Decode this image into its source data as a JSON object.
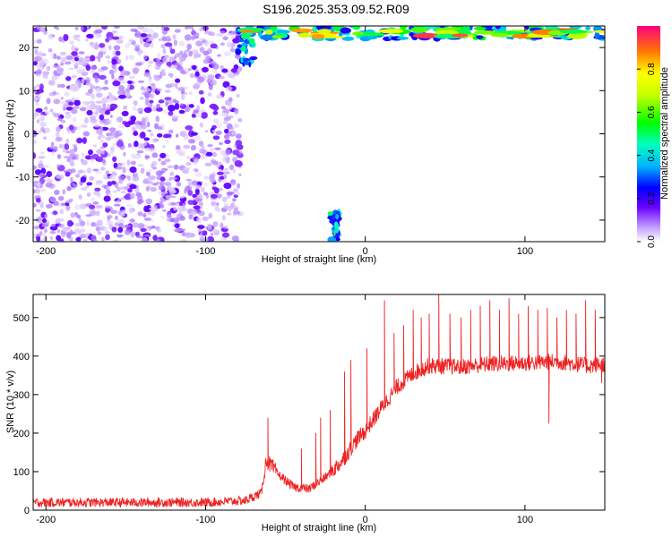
{
  "title": "S196.2025.353.09.52.R09",
  "chart_data": [
    {
      "type": "heatmap",
      "xlabel": "Height of straight line (km)",
      "ylabel": "Frequency (Hz)",
      "xlim": [
        -208,
        150
      ],
      "ylim": [
        -25,
        25
      ],
      "x_ticks": [
        -200,
        -100,
        0,
        100
      ],
      "x_tick_labels": [
        "-200",
        "-100",
        "0",
        "100"
      ],
      "y_ticks": [
        -20,
        -10,
        0,
        10,
        20
      ],
      "y_tick_labels": [
        "-20",
        "-10",
        "0",
        "10",
        "20"
      ],
      "colorbar": {
        "label": "Normalized spectral amplitude",
        "range": [
          0,
          1
        ],
        "ticks": [
          0.0,
          0.2,
          0.4,
          0.6,
          0.8
        ],
        "tick_labels": [
          "0.0",
          "0.2",
          "0.4",
          "0.6",
          "0.8"
        ]
      },
      "regions": [
        {
          "x": [
            -208,
            -78
          ],
          "y": [
            -25,
            25
          ],
          "amplitude": [
            0.1,
            0.25
          ],
          "description": "scattered purple/violet blobs"
        },
        {
          "x": [
            -80,
            -70
          ],
          "y": [
            16,
            25
          ],
          "amplitude": [
            0.2,
            0.5
          ],
          "description": "blue/cyan cluster"
        },
        {
          "x": [
            -75,
            150
          ],
          "y": [
            22,
            25
          ],
          "amplitude": [
            0.4,
            1.0
          ],
          "description": "strong band at top edge"
        },
        {
          "x": [
            -22,
            -16
          ],
          "y": [
            -25,
            -18
          ],
          "amplitude": [
            0.2,
            0.5
          ],
          "description": "small blue/cyan patch"
        }
      ]
    },
    {
      "type": "line",
      "xlabel": "Height of straight line (km)",
      "ylabel": "SNR (10 * v/v)",
      "xlim": [
        -208,
        150
      ],
      "ylim": [
        0,
        560
      ],
      "x_ticks": [
        -200,
        -100,
        0,
        100
      ],
      "x_tick_labels": [
        "-200",
        "-100",
        "0",
        "100"
      ],
      "y_ticks": [
        0,
        100,
        200,
        300,
        400,
        500
      ],
      "y_tick_labels": [
        "0",
        "100",
        "200",
        "300",
        "400",
        "500"
      ],
      "color": "#ee2222",
      "trend": {
        "x": [
          -208,
          -150,
          -100,
          -75,
          -65,
          -62,
          -55,
          -45,
          -35,
          -25,
          -15,
          -5,
          0,
          10,
          20,
          30,
          40,
          60,
          80,
          100,
          120,
          140,
          150
        ],
        "y": [
          20,
          20,
          20,
          25,
          45,
          130,
          95,
          60,
          55,
          85,
          125,
          185,
          205,
          265,
          320,
          355,
          375,
          372,
          380,
          382,
          386,
          375,
          380
        ]
      },
      "noise_amplitude": 12,
      "spikes": [
        {
          "x": -61,
          "y": 240
        },
        {
          "x": -40,
          "y": 160
        },
        {
          "x": -31,
          "y": 200
        },
        {
          "x": -28,
          "y": 240
        },
        {
          "x": -22,
          "y": 260
        },
        {
          "x": -13,
          "y": 360
        },
        {
          "x": -9,
          "y": 390
        },
        {
          "x": 1,
          "y": 420
        },
        {
          "x": 12,
          "y": 545
        },
        {
          "x": 18,
          "y": 460
        },
        {
          "x": 24,
          "y": 480
        },
        {
          "x": 30,
          "y": 520
        },
        {
          "x": 35,
          "y": 500
        },
        {
          "x": 40,
          "y": 510
        },
        {
          "x": 46,
          "y": 560
        },
        {
          "x": 53,
          "y": 510
        },
        {
          "x": 60,
          "y": 500
        },
        {
          "x": 66,
          "y": 520
        },
        {
          "x": 72,
          "y": 530
        },
        {
          "x": 78,
          "y": 545
        },
        {
          "x": 84,
          "y": 520
        },
        {
          "x": 90,
          "y": 550
        },
        {
          "x": 96,
          "y": 510
        },
        {
          "x": 102,
          "y": 530
        },
        {
          "x": 108,
          "y": 520
        },
        {
          "x": 114,
          "y": 525
        },
        {
          "x": 120,
          "y": 500
        },
        {
          "x": 126,
          "y": 520
        },
        {
          "x": 132,
          "y": 510
        },
        {
          "x": 138,
          "y": 545
        },
        {
          "x": 144,
          "y": 520
        }
      ],
      "dips": [
        {
          "x": 115,
          "y": 225
        },
        {
          "x": 148,
          "y": 330
        }
      ]
    }
  ]
}
